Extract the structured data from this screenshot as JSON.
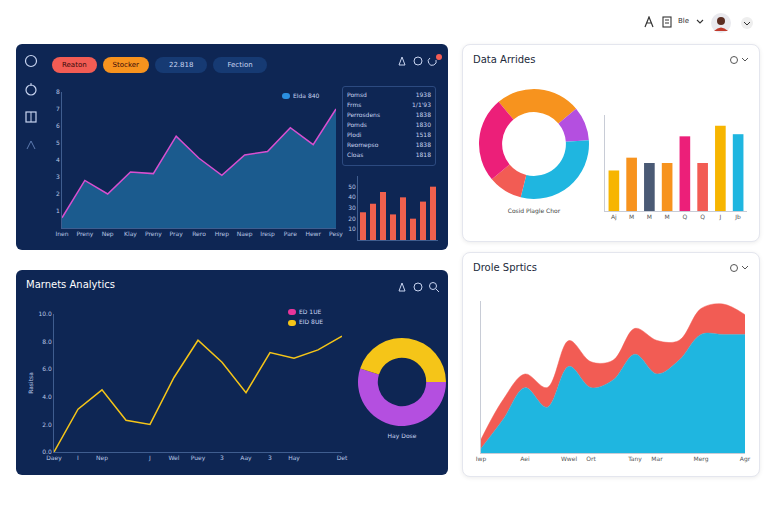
{
  "dashboard": {
    "user_menu": "Ble",
    "overview_panel": {
      "buttons": [
        {
          "label": "Reaton",
          "color": "#f25c54"
        },
        {
          "label": "Stocker",
          "color": "#f7931e"
        },
        {
          "label": "22.818",
          "color": "#163a73"
        },
        {
          "label": "Fection",
          "color": "#163a73"
        }
      ],
      "key_items": [
        {
          "label": "EIda 840",
          "color": "#2b8fe0"
        }
      ],
      "table": {
        "rows": [
          [
            "Pomsd",
            "1938"
          ],
          [
            "Frms",
            "1/1'93"
          ],
          [
            "Perrosdens",
            "1838"
          ],
          [
            "Pomds",
            "1830"
          ],
          [
            "Plodi",
            "1518"
          ],
          [
            "Reomepso",
            "1838"
          ],
          [
            "Cloas",
            "1818"
          ]
        ]
      }
    },
    "data_panel": {
      "title": "Data Arrides",
      "caption": "Cosid Plagle Chor"
    },
    "market_panel": {
      "title": "Marnets Analytics",
      "key_items": [
        {
          "label": "ED 1UE",
          "color": "#e8359a"
        },
        {
          "label": "EID 8UE",
          "color": "#f5c518"
        }
      ],
      "caption": "Hay Dose"
    },
    "sprtics_panel": {
      "title": "Drole Sprtics"
    }
  },
  "chart_data": [
    {
      "type": "area",
      "categories": [
        "Inen",
        "Preny",
        "Nep",
        "Klay",
        "Preny",
        "Pray",
        "Rero",
        "Hrep",
        "Naep",
        "Iresp",
        "Pare",
        "Hewr",
        "Pesy"
      ],
      "values": [
        0.6,
        2.8,
        2.0,
        3.3,
        3.2,
        5.4,
        4.1,
        3.1,
        4.3,
        4.5,
        5.9,
        4.9,
        7.0
      ],
      "color": "#d94fd0",
      "ylim": [
        0,
        8
      ],
      "yticks": [
        1,
        2,
        3,
        4,
        5,
        6,
        7,
        8
      ],
      "grid": false
    },
    {
      "type": "bar",
      "values": [
        26,
        34,
        45,
        24,
        40,
        20,
        36,
        50
      ],
      "color": "#f0604d",
      "ylim": [
        0,
        60
      ],
      "yticks": [
        10,
        20,
        30,
        40,
        50
      ],
      "tick_labels": "y",
      "grid": false
    },
    {
      "type": "pie",
      "values": [
        25,
        10,
        30,
        10,
        25
      ],
      "colors": [
        "#f7931e",
        "#b44fe0",
        "#1fb6e0",
        "#f25c54",
        "#ec1f79"
      ]
    },
    {
      "type": "bar",
      "categories": [
        "Aj",
        "M",
        "M",
        "M",
        "Q",
        "Q",
        "J",
        "Jb"
      ],
      "values": [
        38,
        50,
        45,
        45,
        70,
        45,
        80,
        72
      ],
      "colors": [
        "#f7b500",
        "#f7931e",
        "#4a5a75",
        "#f7931e",
        "#ec1f79",
        "#f25c54",
        "#f7b500",
        "#1fb6e0"
      ],
      "ylim": [
        0,
        90
      ],
      "tick_labels": "x",
      "grid": false
    },
    {
      "type": "line",
      "categories": [
        "Daey",
        "I",
        "Nep",
        null,
        "J",
        "Wel",
        "Puey",
        "3",
        "Aay",
        "3",
        "Hay",
        null,
        "Det"
      ],
      "values": [
        0,
        3.1,
        4.5,
        2.3,
        2.0,
        5.4,
        8.1,
        6.5,
        4.3,
        7.2,
        6.8,
        7.4,
        8.4
      ],
      "color": "#f5c518",
      "y_label": "Rasitsa",
      "ylim": [
        0,
        10
      ],
      "yticks": [
        {
          "value": 0,
          "label": "0.0"
        },
        {
          "value": 2,
          "label": "2.0"
        },
        {
          "value": 4,
          "label": "4.0"
        },
        {
          "value": 6,
          "label": "6.0"
        },
        {
          "value": 8,
          "label": "8.0"
        },
        {
          "value": 10,
          "label": "10.0"
        }
      ],
      "grid": false
    },
    {
      "type": "pie",
      "values": [
        55,
        45
      ],
      "colors": [
        "#b44fe0",
        "#f5c518"
      ]
    },
    {
      "type": "area",
      "stacked": true,
      "categories": [
        "Iwp",
        null,
        "Aei",
        null,
        "Wwel",
        "Ort",
        null,
        "Tany",
        "Mar",
        null,
        "Merg",
        null,
        "Agr"
      ],
      "series": [
        {
          "color": "#1fb6e0",
          "values": [
            3,
            22,
            43,
            30,
            57,
            43,
            48,
            65,
            52,
            61,
            78,
            78,
            78
          ]
        },
        {
          "color": "#f25c54",
          "values": [
            6,
            13,
            9,
            13,
            17,
            17,
            13,
            17,
            22,
            13,
            17,
            20,
            13
          ]
        }
      ],
      "ylim": [
        0,
        100
      ],
      "tick_labels": "x",
      "grid": false
    }
  ]
}
